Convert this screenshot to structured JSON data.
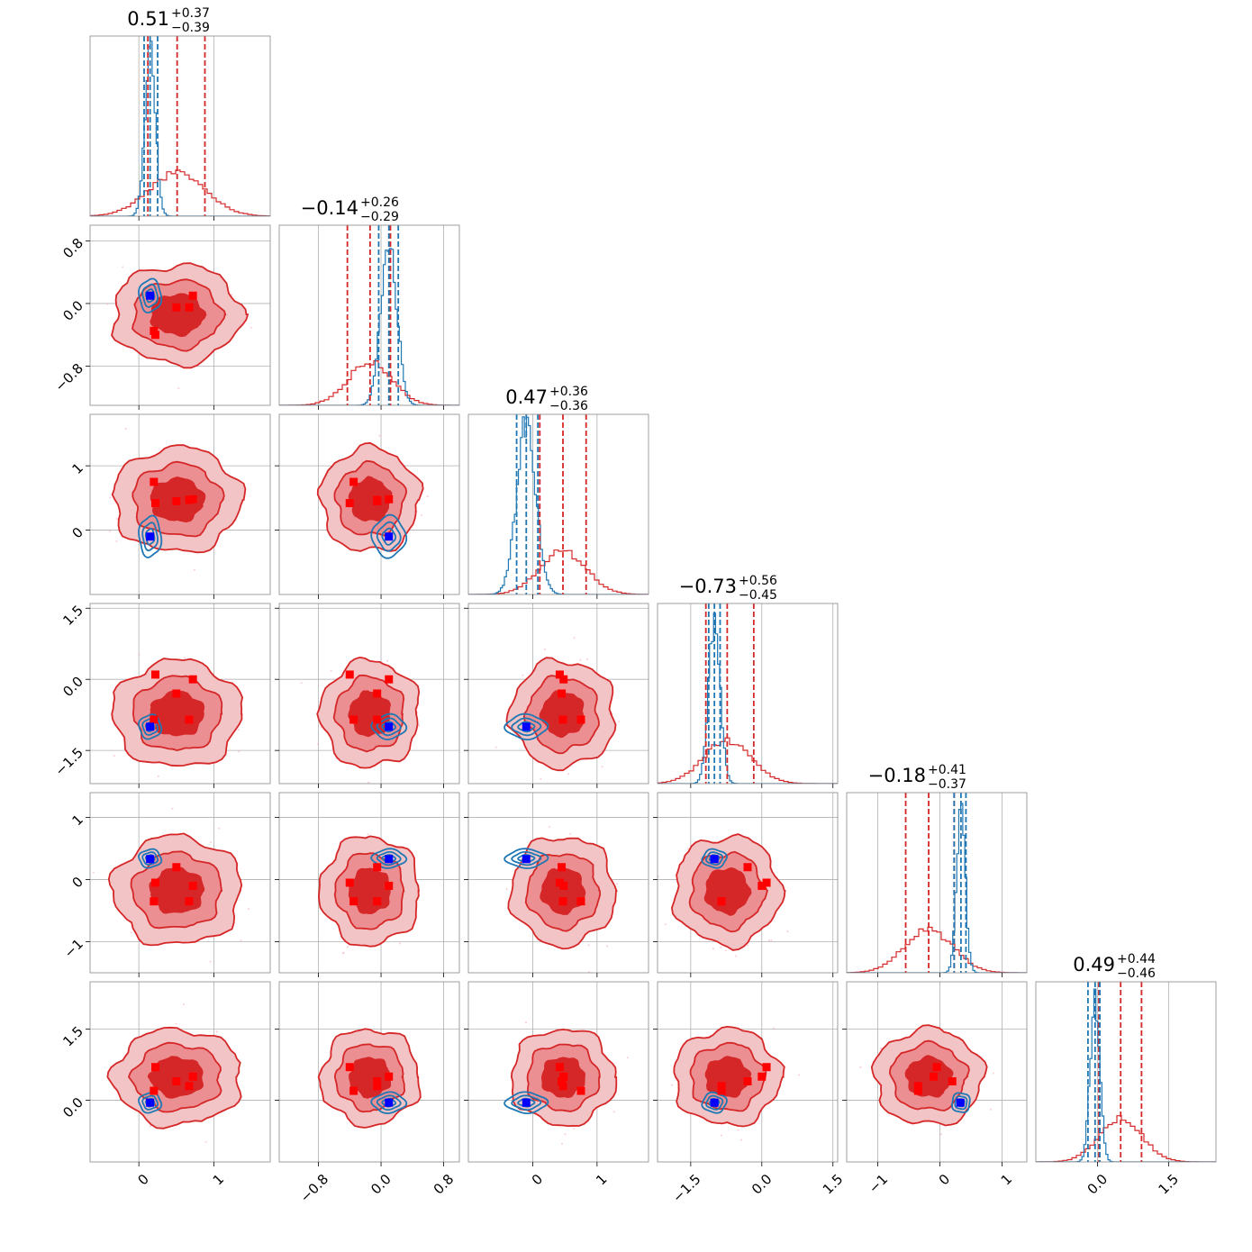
{
  "chart_data": {
    "type": "corner",
    "n_params": 6,
    "colors": {
      "posterior": "#d62728",
      "reference": "#1f77b4",
      "truth_marker_red": "#ff0000",
      "truth_marker_blue": "#0000ff",
      "grid": "#b0b0b0"
    },
    "titles": [
      {
        "value": "0.51",
        "plus": "+0.37",
        "minus": "−0.39"
      },
      {
        "value": "−0.14",
        "plus": "+0.26",
        "minus": "−0.29"
      },
      {
        "value": "0.47",
        "plus": "+0.36",
        "minus": "−0.36"
      },
      {
        "value": "−0.73",
        "plus": "+0.56",
        "minus": "−0.45"
      },
      {
        "value": "−0.18",
        "plus": "+0.41",
        "minus": "−0.37"
      },
      {
        "value": "0.49",
        "plus": "+0.44",
        "minus": "−0.46"
      }
    ],
    "params": [
      {
        "range": [
          -0.65,
          1.75
        ],
        "ticks": [
          0,
          1
        ],
        "tick_labels": [
          "0",
          "1"
        ],
        "red_mean": 0.51,
        "red_sd": 0.38,
        "blue_mean": 0.15,
        "blue_sd": 0.07,
        "red_q": [
          0.12,
          0.51,
          0.88
        ],
        "blue_q": [
          0.07,
          0.15,
          0.25
        ]
      },
      {
        "range": [
          -1.3,
          1.0
        ],
        "ticks": [
          -0.8,
          0.0,
          0.8
        ],
        "tick_labels": [
          "−0.8",
          "0.0",
          "0.8"
        ],
        "red_mean": -0.14,
        "red_sd": 0.28,
        "blue_mean": 0.1,
        "blue_sd": 0.1,
        "red_q": [
          -0.43,
          -0.14,
          0.12
        ],
        "blue_q": [
          -0.03,
          0.1,
          0.22
        ]
      },
      {
        "range": [
          -1.0,
          1.8
        ],
        "ticks": [
          0,
          1
        ],
        "tick_labels": [
          "0",
          "1"
        ],
        "red_mean": 0.47,
        "red_sd": 0.36,
        "blue_mean": -0.1,
        "blue_sd": 0.15,
        "red_q": [
          0.11,
          0.47,
          0.83
        ],
        "blue_q": [
          -0.25,
          -0.1,
          0.08
        ]
      },
      {
        "range": [
          -2.2,
          1.6
        ],
        "ticks": [
          -1.5,
          0.0,
          1.5
        ],
        "tick_labels": [
          "−1.5",
          "0.0",
          "1.5"
        ],
        "red_mean": -0.73,
        "red_sd": 0.5,
        "blue_mean": -1.0,
        "blue_sd": 0.12,
        "red_q": [
          -1.18,
          -0.73,
          -0.17
        ],
        "blue_q": [
          -1.12,
          -1.0,
          -0.88
        ]
      },
      {
        "range": [
          -1.5,
          1.4
        ],
        "ticks": [
          -1,
          0,
          1
        ],
        "tick_labels": [
          "−1",
          "0",
          "1"
        ],
        "red_mean": -0.18,
        "red_sd": 0.39,
        "blue_mean": 0.34,
        "blue_sd": 0.07,
        "red_q": [
          -0.55,
          -0.18,
          0.23
        ],
        "blue_q": [
          0.23,
          0.34,
          0.42
        ]
      },
      {
        "range": [
          -1.3,
          2.5
        ],
        "ticks": [
          0.0,
          1.5
        ],
        "tick_labels": [
          "0.0",
          "1.5"
        ],
        "red_mean": 0.49,
        "red_sd": 0.45,
        "blue_mean": -0.05,
        "blue_sd": 0.1,
        "red_q": [
          0.03,
          0.49,
          0.93
        ],
        "blue_q": [
          -0.2,
          -0.05,
          0.05
        ]
      }
    ],
    "red_markers": [
      [
        0.72,
        0.1,
        0.48,
        0.0,
        -0.1,
        0.5
      ],
      [
        0.5,
        -0.05,
        0.45,
        -0.3,
        0.2,
        0.4
      ],
      [
        0.67,
        -0.05,
        0.47,
        -0.85,
        -0.35,
        0.3
      ],
      [
        0.22,
        -0.4,
        0.42,
        0.1,
        -0.05,
        0.7
      ],
      [
        0.2,
        -0.35,
        0.75,
        -0.85,
        -0.35,
        0.2
      ]
    ],
    "blue_marker": [
      0.15,
      0.1,
      -0.1,
      -1.0,
      0.33,
      -0.05
    ]
  }
}
